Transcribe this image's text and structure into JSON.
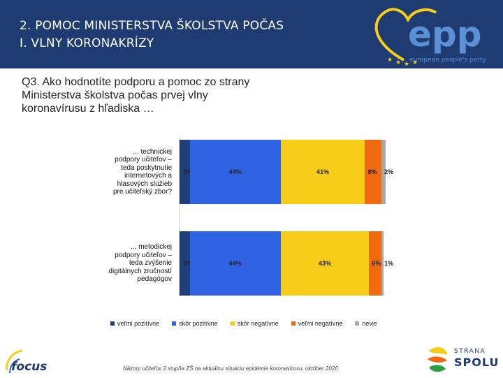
{
  "header": {
    "title_line1": "2. POMOC MINISTERSTVA ŠKOLSTVA POČAS",
    "title_line2": " I. VLNY KORONAKRÍZY",
    "logo_text": "epp",
    "logo_tagline": "european people's party"
  },
  "question": {
    "line1": "Q3. Ako hodnotíte podporu a pomoc zo strany",
    "line2": "Ministerstva školstva počas prvej vlny",
    "line3": "koronavírusu z hľadiska …"
  },
  "colors": {
    "header_bg": "#1e3b72",
    "velmi_pozitivne": "#1f3f7a",
    "skor_pozitivne": "#2f63e3",
    "skor_negativne": "#f7cd1a",
    "velmi_negativne": "#f06a12",
    "nevie": "#a8a8a8"
  },
  "chart_data": {
    "type": "bar",
    "orientation": "horizontal",
    "stacked": true,
    "categories": [
      "... technickej podpory učiteľov – teda poskytnutie internetových a hlasových služieb pre učiteľský zbor?",
      "... metodickej podpory učiteľov – teda zvýšenie digitálnych zručností pedagógov"
    ],
    "category_lines": [
      [
        "... technickej",
        "podpory učiteľov –",
        "teda poskytnutie",
        "internetových a",
        "hlasových služieb",
        "pre učiteľský zbor?"
      ],
      [
        "... metodickej",
        "podpory učiteľov –",
        "teda zvýšenie",
        "digitálnych zručností",
        "pedagógov"
      ]
    ],
    "series": [
      {
        "name": "veľmi pozitívne",
        "values": [
          5,
          5
        ],
        "labels": [
          "5%",
          "5%"
        ]
      },
      {
        "name": "skôr pozitívne",
        "values": [
          44,
          44
        ],
        "labels": [
          "44%",
          "44%"
        ]
      },
      {
        "name": "skôr negatívne",
        "values": [
          41,
          43
        ],
        "labels": [
          "41%",
          "43%"
        ]
      },
      {
        "name": "veľmi negatívne",
        "values": [
          8,
          6
        ],
        "labels": [
          "8%",
          "6%"
        ]
      },
      {
        "name": "nevie",
        "values": [
          2,
          1
        ],
        "labels": [
          "2%",
          "1%"
        ]
      }
    ],
    "legend_position": "bottom"
  },
  "footer": {
    "source": "Názory učiteľov 2.stupňa ZŠ na aktuálnu situáciu epidémie koronavírusu, október 2020",
    "focus_logo": "focus",
    "spolu_line1": "STRANA",
    "spolu_line2": "SPOLU"
  }
}
